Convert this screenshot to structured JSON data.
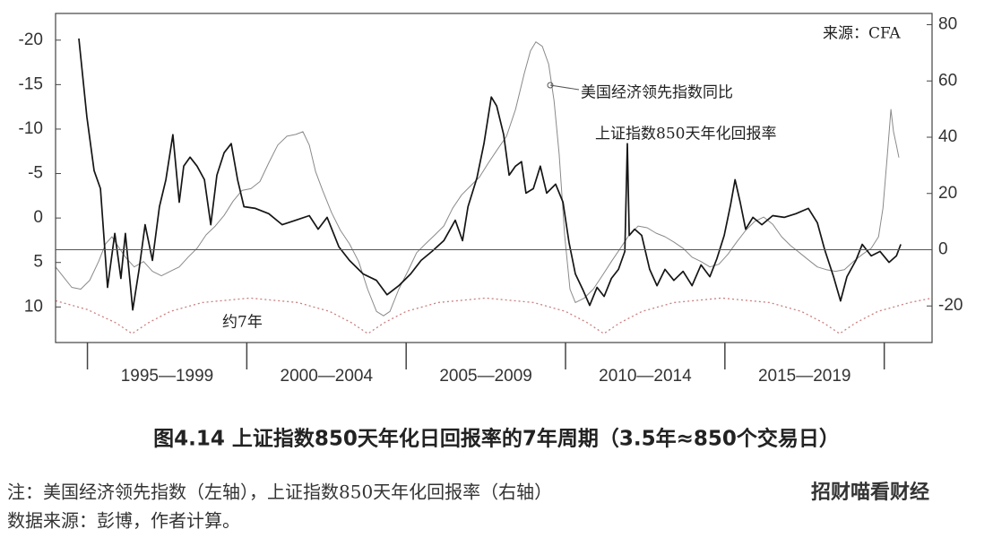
{
  "chart_data": {
    "type": "line",
    "title": "图4.14 上证指数850天年化日回报率的7年周期（3.5年≈850个交易日）",
    "notes": [
      "注：美国经济领先指数（左轴），上证指数850天年化回报率（右轴）",
      "数据来源：彭博，作者计算。"
    ],
    "source": "来源：CFA",
    "watermark": "招财喵看财经",
    "annotations": [
      "美国经济领先指数同比",
      "上证指数850天年化回报率",
      "约7年"
    ],
    "xlim": [
      1994,
      2021.5
    ],
    "periods": [
      {
        "label": "1995—1999",
        "from": 1995,
        "to": 2000
      },
      {
        "label": "2000—2004",
        "from": 2000,
        "to": 2005
      },
      {
        "label": "2005—2009",
        "from": 2005,
        "to": 2010
      },
      {
        "label": "2010—2014",
        "from": 2010,
        "to": 2015
      },
      {
        "label": "2015—2019",
        "from": 2015,
        "to": 2020
      }
    ],
    "ylim": [
      -23,
      14
    ],
    "y_inverted": true,
    "yticks": [
      -20,
      -15,
      -10,
      -5,
      0,
      5,
      10
    ],
    "y2lim": [
      -33,
      84
    ],
    "y2ticks": [
      80,
      60,
      40,
      20,
      0,
      -20
    ],
    "y2_hline": 0,
    "grid": false,
    "series": [
      {
        "name": "美国经济领先指数同比",
        "color": "#8a8a8a",
        "width": 1,
        "x": [
          1994.0,
          1994.22,
          1994.51,
          1994.79,
          1995.07,
          1995.35,
          1995.57,
          1995.77,
          1995.91,
          1996.19,
          1996.47,
          1996.76,
          1997.04,
          1997.32,
          1997.6,
          1997.88,
          1998.16,
          1998.44,
          1998.72,
          1999.01,
          1999.29,
          1999.57,
          1999.85,
          2000.13,
          2000.41,
          2000.69,
          2000.97,
          2001.26,
          2001.54,
          2001.76,
          2001.96,
          2002.16,
          2002.38,
          2002.66,
          2002.94,
          2003.22,
          2003.51,
          2003.79,
          2004.07,
          2004.29,
          2004.49,
          2004.77,
          2005.05,
          2005.33,
          2005.61,
          2005.9,
          2006.18,
          2006.46,
          2006.74,
          2007.02,
          2007.3,
          2007.58,
          2007.86,
          2008.15,
          2008.43,
          2008.71,
          2008.9,
          2009.07,
          2009.27,
          2009.47,
          2009.64,
          2009.8,
          2009.97,
          2010.14,
          2010.31,
          2010.59,
          2010.87,
          2011.15,
          2011.44,
          2011.72,
          2012.0,
          2012.28,
          2012.56,
          2012.84,
          2013.12,
          2013.4,
          2013.69,
          2013.97,
          2014.25,
          2014.53,
          2014.81,
          2015.09,
          2015.37,
          2015.65,
          2015.93,
          2016.22,
          2016.5,
          2016.78,
          2017.06,
          2017.34,
          2017.62,
          2017.9,
          2018.18,
          2018.47,
          2018.75,
          2019.03,
          2019.31,
          2019.59,
          2019.82,
          2019.96,
          2020.1,
          2020.21,
          2020.29,
          2020.38,
          2020.46
        ],
        "values": [
          5.5,
          6.5,
          7.8,
          8.0,
          7.0,
          4.9,
          2.9,
          2.1,
          2.9,
          4.4,
          5.5,
          4.9,
          6.0,
          6.5,
          6.0,
          5.5,
          4.4,
          3.4,
          1.9,
          0.9,
          -0.3,
          -1.9,
          -3.1,
          -3.3,
          -4.1,
          -6.2,
          -8.2,
          -9.2,
          -9.4,
          -9.7,
          -8.2,
          -5.2,
          -3.1,
          -0.6,
          1.4,
          2.9,
          4.9,
          8.0,
          10.5,
          11.0,
          10.5,
          8.0,
          6.0,
          3.9,
          2.9,
          1.9,
          0.9,
          -1.1,
          -2.6,
          -3.6,
          -4.6,
          -6.2,
          -7.7,
          -9.2,
          -12.2,
          -16.3,
          -18.8,
          -19.8,
          -19.3,
          -17.3,
          -13.2,
          -7.2,
          1.9,
          8.0,
          9.5,
          9.0,
          8.0,
          6.5,
          4.9,
          3.4,
          1.9,
          0.9,
          1.1,
          1.7,
          2.1,
          2.7,
          3.4,
          4.4,
          4.9,
          5.5,
          5.2,
          4.1,
          2.7,
          1.4,
          0.4,
          -0.1,
          0.7,
          2.1,
          3.1,
          3.9,
          4.7,
          5.5,
          5.8,
          6.0,
          5.8,
          4.9,
          4.1,
          3.4,
          2.1,
          -1.1,
          -7.2,
          -12.2,
          -9.7,
          -8.2,
          -6.8
        ]
      },
      {
        "name": "上证指数850天年化回报率",
        "color": "#151515",
        "width": 1.7,
        "axis": "y2",
        "x": [
          1994.73,
          1994.98,
          1995.21,
          1995.41,
          1995.63,
          1995.86,
          1996.05,
          1996.19,
          1996.42,
          1996.62,
          1996.81,
          1997.04,
          1997.26,
          1997.46,
          1997.68,
          1997.88,
          1998.02,
          1998.22,
          1998.44,
          1998.67,
          1998.87,
          1999.06,
          1999.29,
          1999.51,
          1999.71,
          1999.91,
          2000.27,
          2000.69,
          2001.11,
          2001.54,
          2001.96,
          2002.24,
          2002.52,
          2002.89,
          2003.22,
          2003.65,
          2004.07,
          2004.4,
          2004.77,
          2005.14,
          2005.47,
          2005.81,
          2006.18,
          2006.54,
          2006.77,
          2006.94,
          2007.22,
          2007.44,
          2007.67,
          2007.84,
          2008.06,
          2008.23,
          2008.43,
          2008.62,
          2008.76,
          2008.99,
          2009.21,
          2009.41,
          2009.69,
          2009.92,
          2010.11,
          2010.31,
          2010.54,
          2010.76,
          2010.99,
          2011.21,
          2011.44,
          2011.66,
          2011.86,
          2011.94,
          2012.0,
          2012.17,
          2012.39,
          2012.64,
          2012.87,
          2013.12,
          2013.4,
          2013.69,
          2013.97,
          2014.25,
          2014.53,
          2014.75,
          2014.98,
          2015.18,
          2015.32,
          2015.48,
          2015.65,
          2015.88,
          2016.16,
          2016.5,
          2016.86,
          2017.23,
          2017.62,
          2017.9,
          2018.13,
          2018.41,
          2018.63,
          2018.83,
          2019.11,
          2019.31,
          2019.59,
          2019.87,
          2020.15,
          2020.38,
          2020.52
        ],
        "values": [
          75.1,
          47.3,
          28.1,
          21.7,
          -13.4,
          5.8,
          -10.2,
          5.8,
          -21.4,
          -7.0,
          8.9,
          -3.8,
          15.3,
          24.9,
          40.9,
          16.9,
          29.7,
          32.9,
          29.7,
          24.9,
          8.9,
          26.5,
          34.5,
          37.7,
          24.9,
          15.3,
          14.7,
          12.8,
          8.9,
          10.5,
          12.1,
          7.3,
          11.5,
          1.0,
          -3.8,
          -8.6,
          -10.9,
          -16.0,
          -12.8,
          -8.6,
          -3.8,
          -0.6,
          3.2,
          10.5,
          3.2,
          15.3,
          25.6,
          37.7,
          54.3,
          51.1,
          40.9,
          26.5,
          29.7,
          31.3,
          20.1,
          21.7,
          29.7,
          20.1,
          23.3,
          16.9,
          2.6,
          -8.6,
          -14.1,
          -19.8,
          -13.4,
          -16.6,
          -10.2,
          -7.0,
          -0.6,
          37.7,
          5.1,
          7.3,
          5.1,
          -7.0,
          -12.8,
          -7.0,
          -10.9,
          -7.7,
          -12.8,
          -5.4,
          -9.6,
          -3.2,
          5.1,
          16.0,
          24.9,
          16.9,
          7.3,
          11.5,
          8.9,
          12.1,
          11.5,
          12.8,
          14.7,
          9.6,
          0.0,
          -9.6,
          -18.2,
          -9.6,
          -3.8,
          1.9,
          -2.2,
          -0.6,
          -4.5,
          -2.2,
          1.9
        ]
      },
      {
        "color": "#c98080",
        "width": 1.3,
        "dotted": true,
        "x": [
          1994.0,
          1995.0,
          1995.9,
          1996.4,
          1996.9,
          1997.6,
          1998.6,
          2000.1,
          2001.6,
          2002.6,
          2003.3,
          2003.8,
          2004.3,
          2005.0,
          2006.0,
          2007.5,
          2009.0,
          2010.0,
          2010.7,
          2011.2,
          2011.7,
          2012.4,
          2013.4,
          2014.9,
          2016.4,
          2017.4,
          2018.1,
          2018.6,
          2019.1,
          2019.8,
          2020.8,
          2021.5
        ],
        "values": [
          9.3,
          10.3,
          11.8,
          13.0,
          11.8,
          10.5,
          9.5,
          9.0,
          9.5,
          10.5,
          11.8,
          13.0,
          11.8,
          10.5,
          9.5,
          9.0,
          9.5,
          10.5,
          11.8,
          13.0,
          11.8,
          10.5,
          9.5,
          9.0,
          9.5,
          10.5,
          11.8,
          13.0,
          11.8,
          10.5,
          9.5,
          9.0
        ]
      }
    ]
  }
}
